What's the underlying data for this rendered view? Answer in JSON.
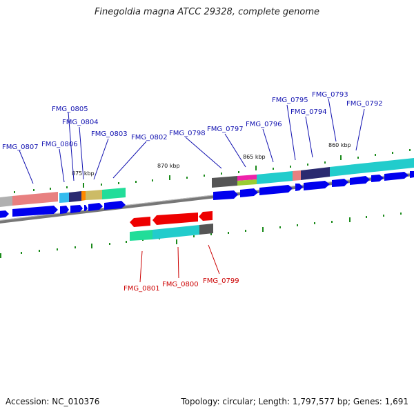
{
  "title": "Finegoldia magna ATCC 29328, complete genome",
  "footer": {
    "accession": "Accession: NC_010376",
    "summary": "Topology: circular; Length: 1,797,577 bp; Genes: 1,691"
  },
  "colors": {
    "forward_label": "#1010b0",
    "reverse_label": "#cc0000",
    "forward_gene": "#0000ee",
    "reverse_gene": "#ee0000",
    "backbone": "#888888",
    "tick": "#1a8a1a"
  },
  "kbp_markers": [
    "875 kbp",
    "870 kbp",
    "865 kbp",
    "860 kbp"
  ],
  "forward_genes": [
    "FMG_0807",
    "FMG_0806",
    "FMG_0805",
    "FMG_0804",
    "FMG_0803",
    "FMG_0802",
    "FMG_0798",
    "FMG_0797",
    "FMG_0796",
    "FMG_0795",
    "FMG_0794",
    "FMG_0793",
    "FMG_0792"
  ],
  "reverse_genes": [
    "FMG_0801",
    "FMG_0800",
    "FMG_0799"
  ]
}
